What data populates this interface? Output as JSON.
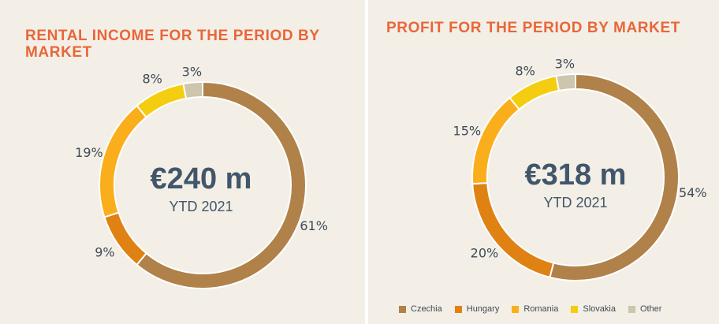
{
  "colors": {
    "Czechia": "#b08149",
    "Hungary": "#df8213",
    "Romania": "#fbae1c",
    "Slovakia": "#f4cd11",
    "Other": "#cdc5ac",
    "title": "#e8663a",
    "center_text": "#41566b"
  },
  "legend": {
    "items": [
      {
        "label": "Czechia",
        "color": "#b08149"
      },
      {
        "label": "Hungary",
        "color": "#df8213"
      },
      {
        "label": "Romania",
        "color": "#fbae1c"
      },
      {
        "label": "Slovakia",
        "color": "#f4cd11"
      },
      {
        "label": "Other",
        "color": "#cdc5ac"
      }
    ]
  },
  "chart_data": [
    {
      "type": "pie",
      "title": "RENTAL INCOME FOR THE PERIOD BY MARKET",
      "center_value": "€240 m",
      "center_label": "YTD 2021",
      "categories": [
        "Czechia",
        "Hungary",
        "Romania",
        "Slovakia",
        "Other"
      ],
      "values": [
        61,
        9,
        19,
        8,
        3
      ],
      "labels": [
        "61%",
        "9%",
        "19%",
        "8%",
        "3%"
      ]
    },
    {
      "type": "pie",
      "title": "PROFIT FOR THE PERIOD BY MARKET",
      "center_value": "€318 m",
      "center_label": "YTD 2021",
      "categories": [
        "Czechia",
        "Hungary",
        "Romania",
        "Slovakia",
        "Other"
      ],
      "values": [
        54,
        20,
        15,
        8,
        3
      ],
      "labels": [
        "54%",
        "20%",
        "15%",
        "8%",
        "3%"
      ]
    }
  ]
}
